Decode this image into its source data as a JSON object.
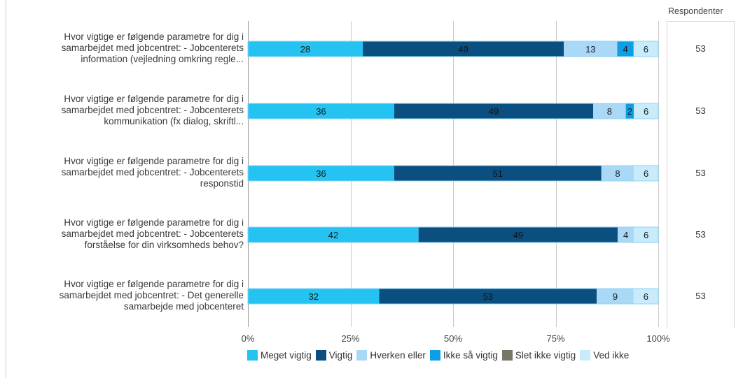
{
  "chart_data": {
    "type": "bar",
    "orientation": "horizontal",
    "stacked": true,
    "categories": [
      "Hvor vigtige er følgende parametre for dig i samarbejdet med jobcentret: - Jobcenterets information (vejledning omkring regle...",
      "Hvor vigtige er følgende parametre for dig i samarbejdet med jobcentret: - Jobcenterets kommunikation (fx dialog, skriftl...",
      "Hvor vigtige er følgende parametre for dig i samarbejdet med jobcentret: - Jobcenterets responstid",
      "Hvor vigtige er følgende parametre for dig i samarbejdet med jobcentret: - Jobcenterets forståelse for din virksomheds behov?",
      "Hvor vigtige er følgende parametre for dig i samarbejdet med jobcentret: - Det generelle samarbejde med jobcenteret"
    ],
    "category_lines": [
      [
        "Hvor vigtige er følgende parametre for dig i",
        "samarbejdet med jobcentret: - Jobcenterets",
        "information (vejledning omkring regle..."
      ],
      [
        "Hvor vigtige er følgende parametre for dig i",
        "samarbejdet med jobcentret: - Jobcenterets",
        "kommunikation (fx dialog, skriftl..."
      ],
      [
        "Hvor vigtige er følgende parametre for dig i",
        "samarbejdet med jobcentret: - Jobcenterets",
        "responstid"
      ],
      [
        "Hvor vigtige er følgende parametre for dig i",
        "samarbejdet med jobcentret: - Jobcenterets",
        "forståelse for din virksomheds behov?"
      ],
      [
        "Hvor vigtige er følgende parametre for dig i",
        "samarbejdet med jobcentret: - Det generelle",
        "samarbejde med jobcenteret"
      ]
    ],
    "series": [
      {
        "name": "Meget vigtig",
        "color": "#24c3f2",
        "label_color": "#1a1a1a",
        "values": [
          28,
          36,
          36,
          42,
          32
        ]
      },
      {
        "name": "Vigtig",
        "color": "#0b4f80",
        "label_color": "#111111",
        "values": [
          49,
          49,
          51,
          49,
          53
        ]
      },
      {
        "name": "Hverken eller",
        "color": "#a9d9f7",
        "label_color": "#1a1a1a",
        "values": [
          13,
          8,
          8,
          4,
          9
        ]
      },
      {
        "name": "Ikke så vigtig",
        "color": "#0e9ee6",
        "label_color": "#1a1a1a",
        "values": [
          4,
          2,
          0,
          0,
          0
        ]
      },
      {
        "name": "Slet ikke vigtig",
        "color": "#787765",
        "label_color": "#1a1a1a",
        "values": [
          0,
          0,
          0,
          0,
          0
        ]
      },
      {
        "name": "Ved ikke",
        "color": "#c8ecfb",
        "label_color": "#1a1a1a",
        "values": [
          6,
          6,
          6,
          6,
          6
        ]
      }
    ],
    "xlim": [
      0,
      100
    ],
    "xticks": [
      "0%",
      "25%",
      "50%",
      "75%",
      "100%"
    ],
    "grid": true,
    "legend_position": "bottom",
    "respondents_header": "Respondenter",
    "respondents": [
      "53",
      "53",
      "53",
      "53",
      "53"
    ]
  }
}
